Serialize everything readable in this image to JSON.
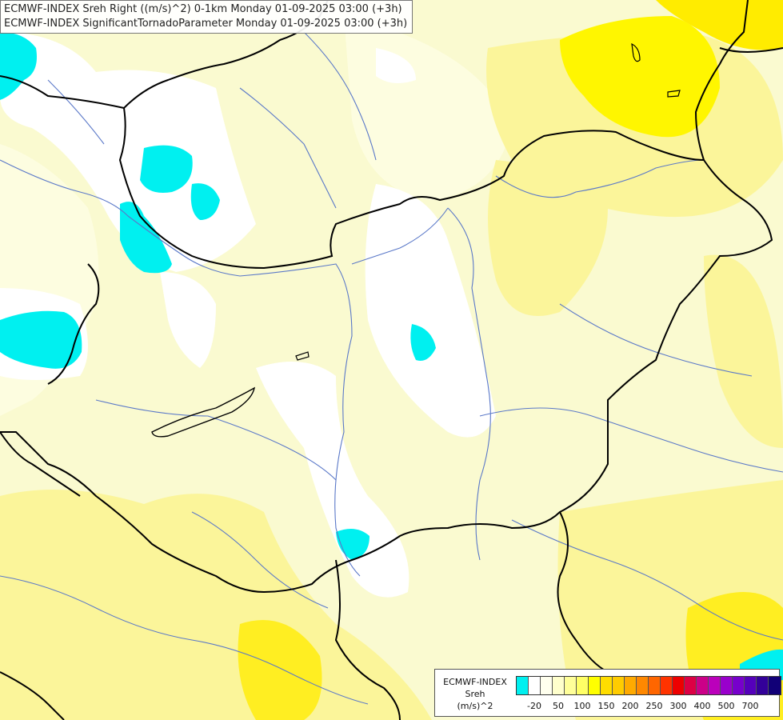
{
  "title_lines": [
    "ECMWF-INDEX Sreh Right ((m/s)^2) 0-1km Monday 01-09-2025 03:00 (+3h)",
    "ECMWF-INDEX SignificantTornadoParameter Monday 01-09-2025 03:00 (+3h)"
  ],
  "legend": {
    "label_lines": [
      "ECMWF-INDEX",
      "Sreh",
      "(m/s)^2"
    ],
    "colors": [
      "#00f0f0",
      "#ffffff",
      "#ffffee",
      "#ffffcc",
      "#ffff99",
      "#ffff66",
      "#ffff00",
      "#ffdd00",
      "#ffcc00",
      "#ffaa00",
      "#ff8800",
      "#ff6600",
      "#ff3300",
      "#ee0000",
      "#dd0044",
      "#cc0088",
      "#bb00bb",
      "#9900cc",
      "#7700cc",
      "#5500bb",
      "#330099",
      "#110077"
    ],
    "ticks": [
      "-20",
      "50",
      "100",
      "150",
      "200",
      "250",
      "300",
      "400",
      "500",
      "700"
    ]
  },
  "field_colors": {
    "background": "#fafad0",
    "light": "#fdfde0",
    "yellow_mid": "#fbf59a",
    "yellow_bright": "#fff600",
    "white": "#ffffff",
    "cyan": "#00f0f0",
    "river": "#5a78c8",
    "border": "#000000"
  }
}
